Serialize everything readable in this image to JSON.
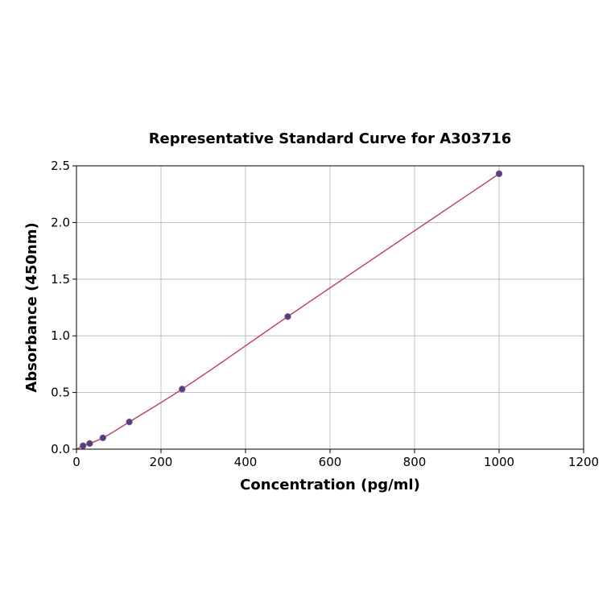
{
  "chart_data": {
    "type": "scatter",
    "title": "Representative Standard Curve for A303716",
    "xlabel": "Concentration (pg/ml)",
    "ylabel": "Absorbance (450nm)",
    "xlim": [
      0,
      1200
    ],
    "ylim": [
      0,
      2.5
    ],
    "xticks": [
      "0",
      "200",
      "400",
      "600",
      "800",
      "1000",
      "1200"
    ],
    "yticks": [
      "0.0",
      "0.5",
      "1.0",
      "1.5",
      "2.0",
      "2.5"
    ],
    "grid": true,
    "series": [
      {
        "points": [
          {
            "x": 15.6,
            "y": 0.03
          },
          {
            "x": 31.25,
            "y": 0.05
          },
          {
            "x": 62.5,
            "y": 0.1
          },
          {
            "x": 125,
            "y": 0.24
          },
          {
            "x": 250,
            "y": 0.53
          },
          {
            "x": 500,
            "y": 1.17
          },
          {
            "x": 1000,
            "y": 2.43
          }
        ],
        "marker_color": "#3b4a8a",
        "fit_color": "#c0476e"
      }
    ]
  }
}
